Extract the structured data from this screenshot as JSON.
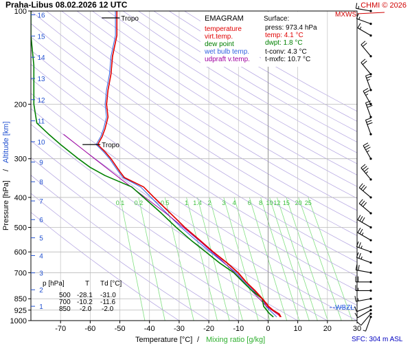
{
  "header": {
    "title": "Praha-Libus   08.02.2026 12 UTC",
    "copyright": "CHMI © 2026"
  },
  "chart_data": {
    "type": "line",
    "x_axis": {
      "label_temp": "Temperature [°C]",
      "label_sep": "/",
      "label_mix": "Mixing ratio [g/kg]",
      "range": [
        -80,
        30
      ],
      "ticks": [
        -70,
        -60,
        -50,
        -40,
        -30,
        -20,
        -10,
        0,
        10,
        20,
        30
      ]
    },
    "y_axis": {
      "label_pressure": "Pressure [hPa]",
      "label_sep": "/",
      "label_altitude": "Altitude [km]",
      "scale": "log",
      "range": [
        1000,
        100
      ],
      "ticks": [
        100,
        200,
        300,
        400,
        500,
        600,
        700,
        850,
        925,
        1000
      ],
      "altitude_ticks": [
        "1",
        "2",
        "3",
        "4",
        "5",
        "6",
        "7",
        "8",
        "9",
        "10",
        "11",
        "12",
        "13",
        "14",
        "15",
        "16"
      ]
    },
    "mixing_ratio_labels": [
      "0.1",
      "0.2",
      "0.5",
      "1",
      "1.4",
      "2",
      "3",
      "4",
      "6",
      "8",
      "10",
      "12",
      "15",
      "20",
      "25"
    ],
    "legend": {
      "title": "EMAGRAM",
      "items": [
        {
          "label": "temperature",
          "color": "#e00000"
        },
        {
          "label": "virt.temp.",
          "color": "#e00000"
        },
        {
          "label": "dew point",
          "color": "#008000"
        },
        {
          "label": "wet bulb temp.",
          "color": "#3060e0"
        },
        {
          "label": "udpraft v.temp.",
          "color": "#a000a0"
        }
      ]
    },
    "surface": {
      "title": "Surface:",
      "press": "press: 973.4 hPa",
      "temp": "temp: 4.1 °C",
      "dwpt": "dwpt: 1.8 °C",
      "tconv": "t-conv: 4.3 °C",
      "tmxfc": "t-mxfc: 10.7 °C"
    },
    "table": {
      "headers": [
        "p [hPa]",
        "T",
        "Td [°C]"
      ],
      "rows": [
        [
          "500",
          "-28.1",
          "-31.0"
        ],
        [
          "700",
          "-10.2",
          "-11.6"
        ],
        [
          "850",
          "-2.0",
          "-2.0"
        ]
      ]
    },
    "annotations": {
      "tropo": "Tropo",
      "mxws": "MXWS",
      "wbzl": "WBZL",
      "sfc": "SFC: 304 m ASL"
    },
    "series": [
      {
        "name": "temperature",
        "color": "#e00000",
        "points": [
          [
            973,
            4.1
          ],
          [
            950,
            3.5
          ],
          [
            925,
            1.5
          ],
          [
            900,
            0
          ],
          [
            850,
            -2.0
          ],
          [
            800,
            -4.5
          ],
          [
            750,
            -7.5
          ],
          [
            700,
            -10.2
          ],
          [
            650,
            -14
          ],
          [
            600,
            -18.5
          ],
          [
            550,
            -23
          ],
          [
            500,
            -28.1
          ],
          [
            450,
            -33
          ],
          [
            400,
            -38.5
          ],
          [
            370,
            -42
          ],
          [
            345,
            -48.5
          ],
          [
            330,
            -50
          ],
          [
            300,
            -53
          ],
          [
            285,
            -55
          ],
          [
            270,
            -57.5
          ],
          [
            255,
            -56
          ],
          [
            240,
            -55
          ],
          [
            220,
            -54
          ],
          [
            200,
            -54.5
          ],
          [
            180,
            -54
          ],
          [
            160,
            -53
          ],
          [
            140,
            -52.5
          ],
          [
            120,
            -51
          ],
          [
            100,
            -51
          ]
        ]
      },
      {
        "name": "virt.temp.",
        "color": "#e00000",
        "points": [
          [
            973,
            4.4
          ],
          [
            950,
            3.8
          ],
          [
            925,
            1.8
          ],
          [
            900,
            0.3
          ],
          [
            850,
            -1.8
          ],
          [
            800,
            -4.3
          ],
          [
            750,
            -7.3
          ],
          [
            700,
            -10.0
          ],
          [
            650,
            -13.8
          ],
          [
            600,
            -18.4
          ],
          [
            550,
            -22.9
          ],
          [
            500,
            -28.0
          ],
          [
            450,
            -32.9
          ],
          [
            400,
            -38.4
          ],
          [
            370,
            -42
          ],
          [
            345,
            -48.4
          ],
          [
            330,
            -50
          ],
          [
            300,
            -53
          ],
          [
            285,
            -55
          ],
          [
            270,
            -57.4
          ],
          [
            255,
            -56
          ],
          [
            240,
            -55
          ],
          [
            220,
            -54
          ],
          [
            200,
            -54.4
          ],
          [
            180,
            -54
          ],
          [
            160,
            -53
          ],
          [
            140,
            -52.4
          ],
          [
            120,
            -51
          ],
          [
            100,
            -51
          ]
        ]
      },
      {
        "name": "dew point",
        "color": "#008000",
        "points": [
          [
            973,
            1.8
          ],
          [
            950,
            0.5
          ],
          [
            925,
            -0.5
          ],
          [
            900,
            -1.5
          ],
          [
            850,
            -2.0
          ],
          [
            800,
            -5.5
          ],
          [
            750,
            -8.5
          ],
          [
            700,
            -11.6
          ],
          [
            650,
            -16.5
          ],
          [
            600,
            -21
          ],
          [
            550,
            -26
          ],
          [
            500,
            -31.0
          ],
          [
            450,
            -36
          ],
          [
            400,
            -42
          ],
          [
            370,
            -46
          ],
          [
            340,
            -55
          ],
          [
            320,
            -60
          ],
          [
            300,
            -64
          ],
          [
            270,
            -70
          ],
          [
            250,
            -74
          ],
          [
            230,
            -78
          ],
          [
            200,
            -79
          ],
          [
            150,
            -79
          ],
          [
            120,
            -80
          ],
          [
            100,
            -80
          ]
        ]
      },
      {
        "name": "wet bulb temp.",
        "color": "#3060e0",
        "points": [
          [
            973,
            2.9
          ],
          [
            950,
            1.8
          ],
          [
            925,
            0.5
          ],
          [
            900,
            -0.6
          ],
          [
            850,
            -2.0
          ],
          [
            800,
            -5.0
          ],
          [
            750,
            -8.0
          ],
          [
            700,
            -10.8
          ],
          [
            650,
            -15
          ],
          [
            600,
            -19.5
          ],
          [
            550,
            -24.3
          ],
          [
            500,
            -29.3
          ],
          [
            450,
            -34.2
          ],
          [
            400,
            -39.5
          ],
          [
            370,
            -43
          ],
          [
            345,
            -49
          ],
          [
            330,
            -50.5
          ],
          [
            300,
            -53.5
          ],
          [
            285,
            -55.5
          ],
          [
            270,
            -58
          ],
          [
            255,
            -56.5
          ],
          [
            240,
            -55.5
          ],
          [
            220,
            -54.5
          ],
          [
            200,
            -55
          ],
          [
            180,
            -54.5
          ],
          [
            160,
            -53.5
          ],
          [
            140,
            -53
          ],
          [
            120,
            -51.5
          ],
          [
            100,
            -51.5
          ]
        ]
      },
      {
        "name": "udpraft v.temp.",
        "color": "#a000a0",
        "points": [
          [
            973,
            4.4
          ],
          [
            940,
            2.2
          ],
          [
            900,
            -0.5
          ],
          [
            850,
            -3.0
          ],
          [
            800,
            -5.6
          ],
          [
            750,
            -8.3
          ],
          [
            700,
            -11.3
          ],
          [
            650,
            -14.8
          ],
          [
            600,
            -18.9
          ],
          [
            550,
            -23.4
          ],
          [
            500,
            -28.6
          ],
          [
            450,
            -34.5
          ],
          [
            400,
            -41.5
          ],
          [
            350,
            -49.5
          ],
          [
            300,
            -58.5
          ],
          [
            250,
            -69
          ]
        ]
      }
    ],
    "tropopause_pressures": [
      100,
      270
    ],
    "wind_barbs": [
      {
        "p": 973,
        "dir": 200,
        "speed": 5
      },
      {
        "p": 950,
        "dir": 220,
        "speed": 10
      },
      {
        "p": 925,
        "dir": 240,
        "speed": 10
      },
      {
        "p": 900,
        "dir": 250,
        "speed": 10
      },
      {
        "p": 850,
        "dir": 260,
        "speed": 15
      },
      {
        "p": 800,
        "dir": 270,
        "speed": 15
      },
      {
        "p": 750,
        "dir": 270,
        "speed": 20
      },
      {
        "p": 700,
        "dir": 280,
        "speed": 20
      },
      {
        "p": 650,
        "dir": 290,
        "speed": 25
      },
      {
        "p": 600,
        "dir": 290,
        "speed": 25
      },
      {
        "p": 550,
        "dir": 300,
        "speed": 25
      },
      {
        "p": 500,
        "dir": 300,
        "speed": 30
      },
      {
        "p": 450,
        "dir": 310,
        "speed": 30
      },
      {
        "p": 400,
        "dir": 310,
        "speed": 30
      },
      {
        "p": 350,
        "dir": 320,
        "speed": 35
      },
      {
        "p": 300,
        "dir": 330,
        "speed": 35
      },
      {
        "p": 250,
        "dir": 340,
        "speed": 30
      },
      {
        "p": 220,
        "dir": 340,
        "speed": 30
      },
      {
        "p": 200,
        "dir": 330,
        "speed": 25
      },
      {
        "p": 180,
        "dir": 340,
        "speed": 25
      },
      {
        "p": 160,
        "dir": 320,
        "speed": 20
      },
      {
        "p": 140,
        "dir": 320,
        "speed": 20
      },
      {
        "p": 120,
        "dir": 300,
        "speed": 15
      },
      {
        "p": 110,
        "dir": 290,
        "speed": 15
      },
      {
        "p": 100,
        "dir": 280,
        "speed": 15
      }
    ]
  }
}
